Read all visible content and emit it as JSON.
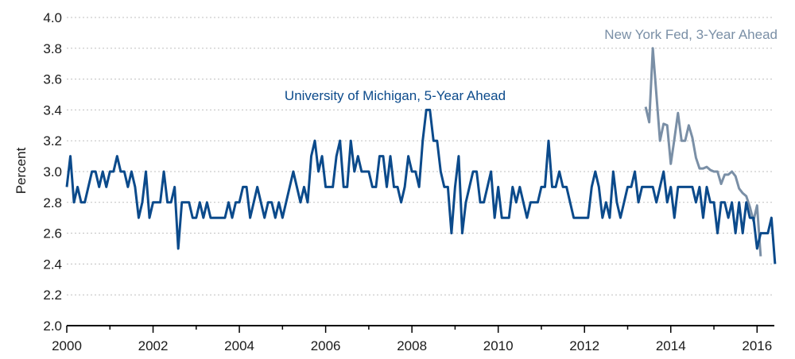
{
  "chart_data": {
    "type": "line",
    "ylabel": "Percent",
    "xlim": [
      2000,
      2016.4
    ],
    "ylim": [
      2.0,
      4.0
    ],
    "x_ticks": [
      "2000",
      "2002",
      "2004",
      "2006",
      "2008",
      "2010",
      "2012",
      "2014",
      "2016"
    ],
    "y_ticks": [
      "2.0",
      "2.2",
      "2.4",
      "2.6",
      "2.8",
      "3.0",
      "3.2",
      "3.4",
      "3.6",
      "3.8",
      "4.0"
    ],
    "grid": "horizontal dashed",
    "series": [
      {
        "name": "University of Michigan, 5-Year Ahead",
        "color": "#0b4a8b",
        "start": "2000-01",
        "frequency": "monthly",
        "values": [
          2.9,
          3.1,
          2.8,
          2.9,
          2.8,
          2.8,
          2.9,
          3.0,
          3.0,
          2.9,
          3.0,
          2.9,
          3.0,
          3.0,
          3.1,
          3.0,
          3.0,
          2.9,
          3.0,
          2.9,
          2.7,
          2.8,
          3.0,
          2.7,
          2.8,
          2.8,
          2.8,
          3.0,
          2.8,
          2.8,
          2.9,
          2.5,
          2.8,
          2.8,
          2.8,
          2.7,
          2.7,
          2.8,
          2.7,
          2.8,
          2.7,
          2.7,
          2.7,
          2.7,
          2.7,
          2.8,
          2.7,
          2.8,
          2.8,
          2.9,
          2.9,
          2.7,
          2.8,
          2.9,
          2.8,
          2.7,
          2.8,
          2.8,
          2.7,
          2.8,
          2.7,
          2.8,
          2.9,
          3.0,
          2.9,
          2.8,
          2.9,
          2.8,
          3.1,
          3.2,
          3.0,
          3.1,
          2.9,
          2.9,
          2.9,
          3.1,
          3.2,
          2.9,
          2.9,
          3.2,
          3.0,
          3.1,
          3.0,
          3.0,
          3.0,
          2.9,
          2.9,
          3.1,
          3.1,
          2.9,
          3.1,
          2.9,
          2.9,
          2.8,
          2.9,
          3.1,
          3.0,
          3.0,
          2.9,
          3.2,
          3.4,
          3.4,
          3.2,
          3.2,
          3.0,
          2.9,
          2.9,
          2.6,
          2.9,
          3.1,
          2.6,
          2.8,
          2.9,
          3.0,
          3.0,
          2.8,
          2.8,
          2.9,
          3.0,
          2.7,
          2.9,
          2.7,
          2.7,
          2.7,
          2.9,
          2.8,
          2.9,
          2.8,
          2.7,
          2.8,
          2.8,
          2.8,
          2.9,
          2.9,
          3.2,
          2.9,
          2.9,
          3.0,
          2.9,
          2.9,
          2.8,
          2.7,
          2.7,
          2.7,
          2.7,
          2.7,
          2.9,
          3.0,
          2.9,
          2.7,
          2.8,
          2.7,
          3.0,
          2.8,
          2.7,
          2.8,
          2.9,
          2.9,
          3.0,
          2.8,
          2.9,
          2.9,
          2.9,
          2.9,
          2.8,
          2.9,
          3.0,
          2.8,
          2.9,
          2.7,
          2.9,
          2.9,
          2.9,
          2.9,
          2.9,
          2.8,
          2.9,
          2.7,
          2.9,
          2.8,
          2.8,
          2.6,
          2.8,
          2.8,
          2.7,
          2.8,
          2.6,
          2.8,
          2.6,
          2.8,
          2.7,
          2.7,
          2.5,
          2.6,
          2.6,
          2.6,
          2.7,
          2.4
        ]
      },
      {
        "name": "New York Fed, 3-Year Ahead",
        "color": "#7a8fa6",
        "start": "2013-06",
        "frequency": "monthly",
        "values": [
          3.42,
          3.32,
          3.8,
          3.5,
          3.2,
          3.31,
          3.3,
          3.05,
          3.21,
          3.38,
          3.2,
          3.2,
          3.3,
          3.22,
          3.09,
          3.02,
          3.02,
          3.03,
          3.01,
          3.0,
          3.0,
          2.92,
          2.98,
          2.98,
          3.0,
          2.97,
          2.89,
          2.86,
          2.84,
          2.77,
          2.68,
          2.78,
          2.45
        ]
      }
    ],
    "annotations": [
      {
        "text": "University of Michigan, 5-Year Ahead",
        "series": 0
      },
      {
        "text": "New York Fed, 3-Year Ahead",
        "series": 1
      }
    ]
  }
}
